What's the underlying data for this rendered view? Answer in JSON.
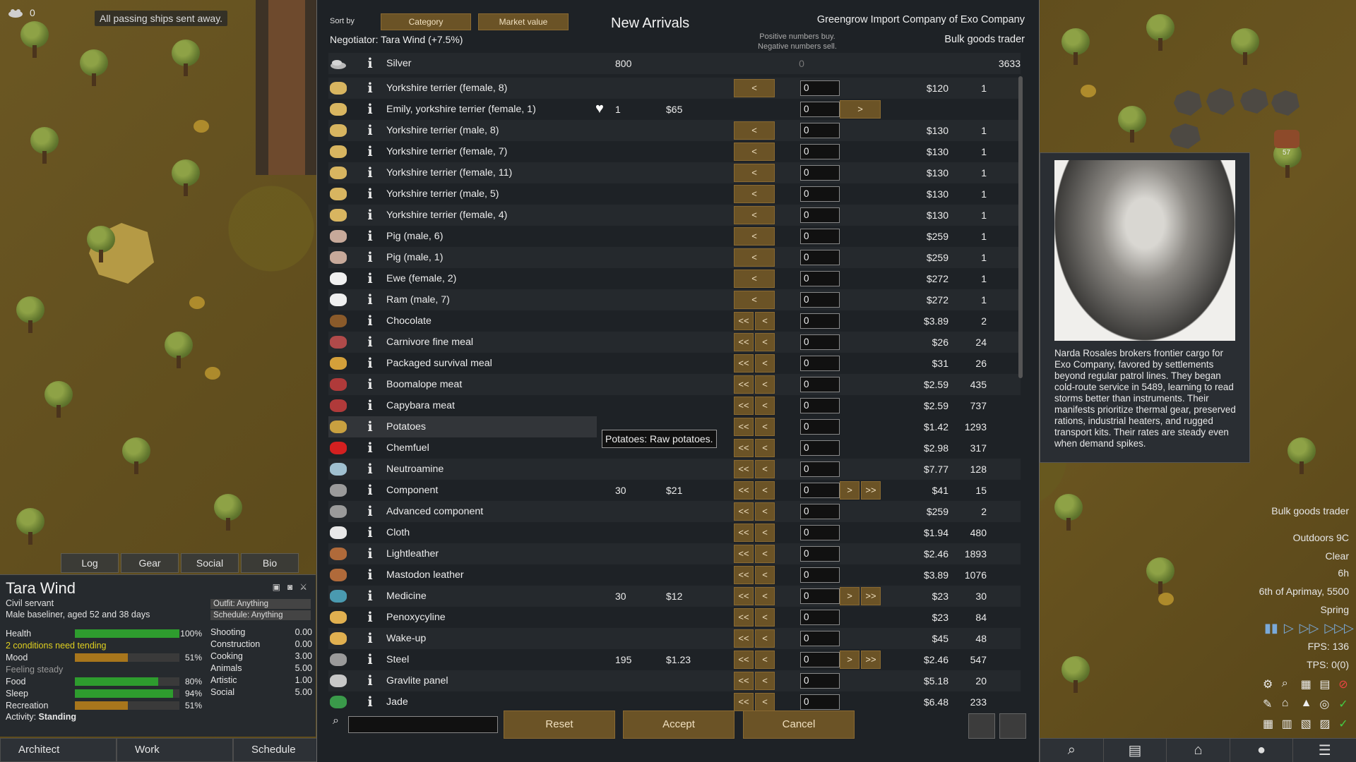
{
  "hud": {
    "colonist_count": "0",
    "toast": "All passing ships sent away."
  },
  "dialog": {
    "sort_label": "Sort by",
    "sort_category": "Category",
    "sort_market": "Market value",
    "title": "New Arrivals",
    "company": "Greengrow Import Company of Exo Company",
    "negotiator": "Negotiator: Tara Wind (+7.5%)",
    "hint_line1": "Positive numbers buy.",
    "hint_line2": "Negative numbers sell.",
    "trader_kind": "Bulk goods trader",
    "silver": {
      "name": "Silver",
      "colony_qty": "800",
      "count": "0",
      "trader_qty": "3633"
    },
    "tooltip": "Potatoes: Raw potatoes.",
    "reset": "Reset",
    "accept": "Accept",
    "cancel": "Cancel",
    "rows": [
      {
        "name": "Yorkshire terrier (female, 8)",
        "icon": "dog-icon",
        "cq": "",
        "cp": "",
        "count": "0",
        "tp": "$120",
        "tq": "1",
        "left": "<",
        "right": "",
        "heart": false
      },
      {
        "name": "Emily, yorkshire terrier (female, 1)",
        "icon": "dog-icon",
        "cq": "1",
        "cp": "$65",
        "count": "0",
        "tp": "",
        "tq": "",
        "left": "",
        "right": ">",
        "heart": true
      },
      {
        "name": "Yorkshire terrier (male, 8)",
        "icon": "dog-icon",
        "cq": "",
        "cp": "",
        "count": "0",
        "tp": "$130",
        "tq": "1",
        "left": "<",
        "right": "",
        "heart": false
      },
      {
        "name": "Yorkshire terrier (female, 7)",
        "icon": "dog-icon",
        "cq": "",
        "cp": "",
        "count": "0",
        "tp": "$130",
        "tq": "1",
        "left": "<",
        "right": "",
        "heart": false
      },
      {
        "name": "Yorkshire terrier (female, 11)",
        "icon": "dog-icon",
        "cq": "",
        "cp": "",
        "count": "0",
        "tp": "$130",
        "tq": "1",
        "left": "<",
        "right": "",
        "heart": false
      },
      {
        "name": "Yorkshire terrier (male, 5)",
        "icon": "dog-icon",
        "cq": "",
        "cp": "",
        "count": "0",
        "tp": "$130",
        "tq": "1",
        "left": "<",
        "right": "",
        "heart": false
      },
      {
        "name": "Yorkshire terrier (female, 4)",
        "icon": "dog-icon",
        "cq": "",
        "cp": "",
        "count": "0",
        "tp": "$130",
        "tq": "1",
        "left": "<",
        "right": "",
        "heart": false
      },
      {
        "name": "Pig (male, 6)",
        "icon": "pig-icon",
        "cq": "",
        "cp": "",
        "count": "0",
        "tp": "$259",
        "tq": "1",
        "left": "<",
        "right": "",
        "heart": false
      },
      {
        "name": "Pig (male, 1)",
        "icon": "pig-icon",
        "cq": "",
        "cp": "",
        "count": "0",
        "tp": "$259",
        "tq": "1",
        "left": "<",
        "right": "",
        "heart": false
      },
      {
        "name": "Ewe (female, 2)",
        "icon": "sheep-icon",
        "cq": "",
        "cp": "",
        "count": "0",
        "tp": "$272",
        "tq": "1",
        "left": "<",
        "right": "",
        "heart": false
      },
      {
        "name": "Ram (male, 7)",
        "icon": "sheep-icon",
        "cq": "",
        "cp": "",
        "count": "0",
        "tp": "$272",
        "tq": "1",
        "left": "<",
        "right": "",
        "heart": false
      },
      {
        "name": "Chocolate",
        "icon": "chocolate-icon",
        "cq": "",
        "cp": "",
        "count": "0",
        "tp": "$3.89",
        "tq": "2",
        "left": "<<",
        "right": "",
        "heart": false
      },
      {
        "name": "Carnivore fine meal",
        "icon": "meal-icon",
        "cq": "",
        "cp": "",
        "count": "0",
        "tp": "$26",
        "tq": "24",
        "left": "<<",
        "right": "",
        "heart": false
      },
      {
        "name": "Packaged survival meal",
        "icon": "survival-meal-icon",
        "cq": "",
        "cp": "",
        "count": "0",
        "tp": "$31",
        "tq": "26",
        "left": "<<",
        "right": "",
        "heart": false
      },
      {
        "name": "Boomalope meat",
        "icon": "meat-icon",
        "cq": "",
        "cp": "",
        "count": "0",
        "tp": "$2.59",
        "tq": "435",
        "left": "<<",
        "right": "",
        "heart": false
      },
      {
        "name": "Capybara meat",
        "icon": "meat-icon",
        "cq": "",
        "cp": "",
        "count": "0",
        "tp": "$2.59",
        "tq": "737",
        "left": "<<",
        "right": "",
        "heart": false
      },
      {
        "name": "Potatoes",
        "icon": "potato-icon",
        "cq": "",
        "cp": "",
        "count": "0",
        "tp": "$1.42",
        "tq": "1293",
        "left": "<<",
        "right": "",
        "heart": false
      },
      {
        "name": "Chemfuel",
        "icon": "chemfuel-icon",
        "cq": "",
        "cp": "",
        "count": "0",
        "tp": "$2.98",
        "tq": "317",
        "left": "<<",
        "right": "",
        "heart": false
      },
      {
        "name": "Neutroamine",
        "icon": "neutroamine-icon",
        "cq": "",
        "cp": "",
        "count": "0",
        "tp": "$7.77",
        "tq": "128",
        "left": "<<",
        "right": "",
        "heart": false
      },
      {
        "name": "Component",
        "icon": "component-icon",
        "cq": "30",
        "cp": "$21",
        "count": "0",
        "tp": "$41",
        "tq": "15",
        "left": "<<",
        "right": ">>",
        "heart": false
      },
      {
        "name": "Advanced component",
        "icon": "component-icon",
        "cq": "",
        "cp": "",
        "count": "0",
        "tp": "$259",
        "tq": "2",
        "left": "<<",
        "right": "",
        "heart": false
      },
      {
        "name": "Cloth",
        "icon": "cloth-icon",
        "cq": "",
        "cp": "",
        "count": "0",
        "tp": "$1.94",
        "tq": "480",
        "left": "<<",
        "right": "",
        "heart": false
      },
      {
        "name": "Lightleather",
        "icon": "leather-icon",
        "cq": "",
        "cp": "",
        "count": "0",
        "tp": "$2.46",
        "tq": "1893",
        "left": "<<",
        "right": "",
        "heart": false
      },
      {
        "name": "Mastodon leather",
        "icon": "leather-icon",
        "cq": "",
        "cp": "",
        "count": "0",
        "tp": "$3.89",
        "tq": "1076",
        "left": "<<",
        "right": "",
        "heart": false
      },
      {
        "name": "Medicine",
        "icon": "medicine-icon",
        "cq": "30",
        "cp": "$12",
        "count": "0",
        "tp": "$23",
        "tq": "30",
        "left": "<<",
        "right": ">>",
        "heart": false
      },
      {
        "name": "Penoxycyline",
        "icon": "pill-icon",
        "cq": "",
        "cp": "",
        "count": "0",
        "tp": "$23",
        "tq": "84",
        "left": "<<",
        "right": "",
        "heart": false
      },
      {
        "name": "Wake-up",
        "icon": "pill-icon",
        "cq": "",
        "cp": "",
        "count": "0",
        "tp": "$45",
        "tq": "48",
        "left": "<<",
        "right": "",
        "heart": false
      },
      {
        "name": "Steel",
        "icon": "steel-icon",
        "cq": "195",
        "cp": "$1.23",
        "count": "0",
        "tp": "$2.46",
        "tq": "547",
        "left": "<<",
        "right": ">>",
        "heart": false
      },
      {
        "name": "Gravlite panel",
        "icon": "gravlite-icon",
        "cq": "",
        "cp": "",
        "count": "0",
        "tp": "$5.18",
        "tq": "20",
        "left": "<<",
        "right": "",
        "heart": false
      },
      {
        "name": "Jade",
        "icon": "jade-icon",
        "cq": "",
        "cp": "",
        "count": "0",
        "tp": "$6.48",
        "tq": "233",
        "left": "<<",
        "right": "",
        "heart": false
      }
    ]
  },
  "pawn": {
    "tabs": [
      "Log",
      "Gear",
      "Social",
      "Bio"
    ],
    "name": "Tara Wind",
    "title": "Civil servant",
    "desc": "Male baseliner, aged 52 and 38 days",
    "outfit": "Outfit: Anything",
    "schedule": "Schedule: Anything",
    "conditions": "2 conditions need tending",
    "feeling": "Feeling steady",
    "activity_label": "Activity:",
    "activity": "Standing",
    "needs": [
      {
        "label": "Health",
        "value": "100%",
        "level": 1.0,
        "color": "#2e9c2e"
      },
      {
        "label": "Mood",
        "value": "51%",
        "level": 0.51,
        "color": "#a8761c"
      },
      {
        "label": "Food",
        "value": "80%",
        "level": 0.8,
        "color": "#2e9c2e"
      },
      {
        "label": "Sleep",
        "value": "94%",
        "level": 0.94,
        "color": "#2e9c2e"
      },
      {
        "label": "Recreation",
        "value": "51%",
        "level": 0.51,
        "color": "#a8761c"
      }
    ],
    "skills": [
      {
        "label": "Shooting",
        "value": "0.00"
      },
      {
        "label": "Construction",
        "value": "0.00"
      },
      {
        "label": "Cooking",
        "value": "3.00"
      },
      {
        "label": "Animals",
        "value": "5.00"
      },
      {
        "label": "Artistic",
        "value": "1.00"
      },
      {
        "label": "Social",
        "value": "5.00"
      }
    ]
  },
  "trader_card": {
    "bio": "Narda Rosales brokers frontier cargo for Exo Company, favored by settlements beyond regular patrol lines. They began cold-route service in 5489, learning to read storms better than instruments. Their manifests prioritize thermal gear, preserved rations, industrial heaters, and rugged transport kits. Their rates are steady even when demand spikes."
  },
  "status": {
    "trader_label": "Bulk goods trader",
    "temp": "Outdoors 9C",
    "weather": "Clear",
    "hour": "6h",
    "date": "6th of Aprimay, 5500",
    "season": "Spring",
    "fps": "FPS: 136",
    "tps": "TPS: 0(0)",
    "map_marker": "57"
  },
  "bottom": {
    "architect": "Architect",
    "work": "Work",
    "schedule": "Schedule"
  }
}
